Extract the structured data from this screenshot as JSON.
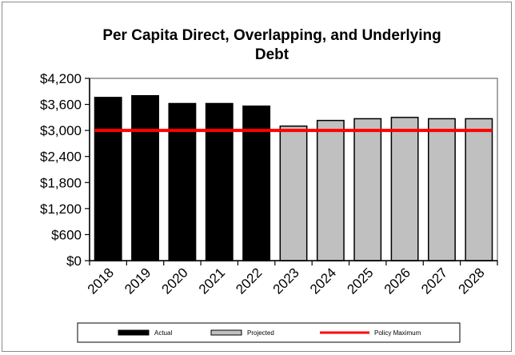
{
  "chart_data": {
    "type": "bar",
    "title_lines": [
      "Per Capita Direct, Overlapping,  and Underlying",
      "Debt"
    ],
    "xlabel": "",
    "ylabel": "",
    "ylim": [
      0,
      4200
    ],
    "y_ticks": [
      "$0",
      "$600",
      "$1,200",
      "$1,800",
      "$2,400",
      "$3,000",
      "$3,600",
      "$4,200"
    ],
    "y_tick_values": [
      0,
      600,
      1200,
      1800,
      2400,
      3000,
      3600,
      4200
    ],
    "categories": [
      "2018",
      "2019",
      "2020",
      "2021",
      "2022",
      "2023",
      "2024",
      "2025",
      "2026",
      "2027",
      "2028"
    ],
    "series": [
      {
        "name": "Actual",
        "color": "#000000",
        "values": [
          3760,
          3800,
          3620,
          3620,
          3560,
          null,
          null,
          null,
          null,
          null,
          null
        ]
      },
      {
        "name": "Projected",
        "color": "#c0c0c0",
        "values": [
          null,
          null,
          null,
          null,
          null,
          3100,
          3230,
          3270,
          3300,
          3270,
          3270
        ]
      },
      {
        "name": "Policy Maximum",
        "type": "line",
        "color": "#ff0000",
        "value": 3000
      }
    ],
    "legend_position": "bottom",
    "grid": false
  }
}
